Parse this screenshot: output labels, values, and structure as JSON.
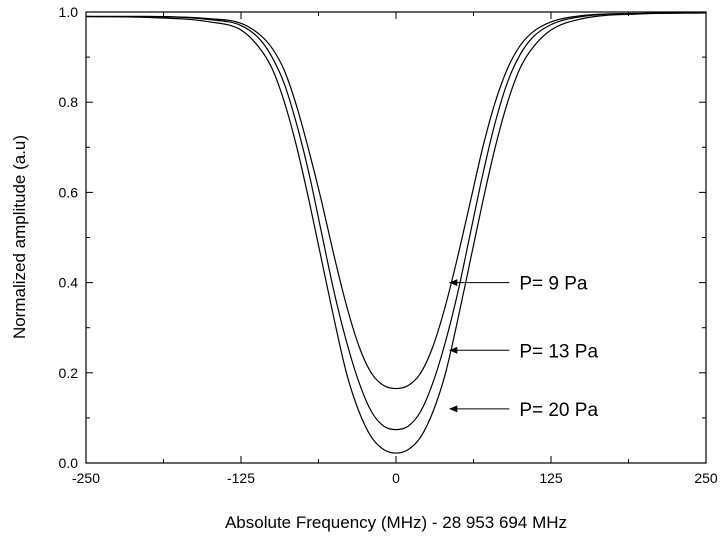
{
  "chart_data": {
    "type": "line",
    "title": "",
    "xlabel": "Absolute Frequency (MHz) - 28 953 694 MHz",
    "ylabel": "Normalized amplitude (a.u)",
    "xlim": [
      -250,
      250
    ],
    "ylim": [
      0.0,
      1.0
    ],
    "x_ticks": [
      -250,
      -125,
      0,
      125,
      250
    ],
    "x_tick_labels": [
      "-250",
      "-125",
      "0",
      "125",
      "250"
    ],
    "y_ticks": [
      0.0,
      0.2,
      0.4,
      0.6,
      0.8,
      1.0
    ],
    "y_tick_labels": [
      "0.0",
      "0.2",
      "0.4",
      "0.6",
      "0.8",
      "1.0"
    ],
    "grid": false,
    "line_color": "#000000",
    "series": [
      {
        "x": [
          -250,
          -200,
          -150,
          -125,
          -110,
          -100,
          -90,
          -80,
          -70,
          -60,
          -50,
          -40,
          -30,
          -20,
          -10,
          0,
          10,
          20,
          30,
          40,
          50,
          60,
          70,
          80,
          90,
          100,
          110,
          125,
          150,
          200,
          250
        ],
        "values": [
          0.99,
          0.99,
          0.985,
          0.975,
          0.95,
          0.92,
          0.87,
          0.79,
          0.69,
          0.58,
          0.46,
          0.35,
          0.26,
          0.2,
          0.172,
          0.165,
          0.172,
          0.2,
          0.26,
          0.35,
          0.46,
          0.58,
          0.7,
          0.8,
          0.875,
          0.925,
          0.955,
          0.978,
          0.992,
          0.997,
          0.998
        ]
      },
      {
        "x": [
          -250,
          -200,
          -150,
          -125,
          -110,
          -100,
          -90,
          -80,
          -70,
          -60,
          -50,
          -40,
          -30,
          -20,
          -10,
          0,
          10,
          20,
          30,
          40,
          50,
          60,
          70,
          80,
          90,
          100,
          110,
          125,
          150,
          200,
          250
        ],
        "values": [
          0.99,
          0.99,
          0.983,
          0.97,
          0.94,
          0.9,
          0.84,
          0.75,
          0.64,
          0.51,
          0.38,
          0.27,
          0.18,
          0.115,
          0.082,
          0.074,
          0.082,
          0.115,
          0.18,
          0.27,
          0.38,
          0.51,
          0.64,
          0.755,
          0.845,
          0.905,
          0.943,
          0.972,
          0.99,
          0.997,
          0.998
        ]
      },
      {
        "x": [
          -250,
          -200,
          -150,
          -125,
          -110,
          -100,
          -90,
          -80,
          -70,
          -60,
          -50,
          -40,
          -30,
          -20,
          -10,
          0,
          10,
          20,
          30,
          40,
          50,
          60,
          70,
          80,
          90,
          100,
          110,
          125,
          150,
          200,
          250
        ],
        "values": [
          0.99,
          0.988,
          0.978,
          0.96,
          0.92,
          0.875,
          0.8,
          0.7,
          0.58,
          0.45,
          0.32,
          0.2,
          0.115,
          0.058,
          0.03,
          0.022,
          0.03,
          0.058,
          0.115,
          0.2,
          0.32,
          0.45,
          0.58,
          0.7,
          0.8,
          0.875,
          0.92,
          0.96,
          0.985,
          0.996,
          0.998
        ]
      }
    ],
    "annotations": [
      {
        "text": "P= 9 Pa",
        "arrow_tip": [
          43,
          0.4
        ]
      },
      {
        "text": "P= 13 Pa",
        "arrow_tip": [
          43,
          0.25
        ]
      },
      {
        "text": "P= 20 Pa",
        "arrow_tip": [
          43,
          0.12
        ]
      }
    ]
  }
}
